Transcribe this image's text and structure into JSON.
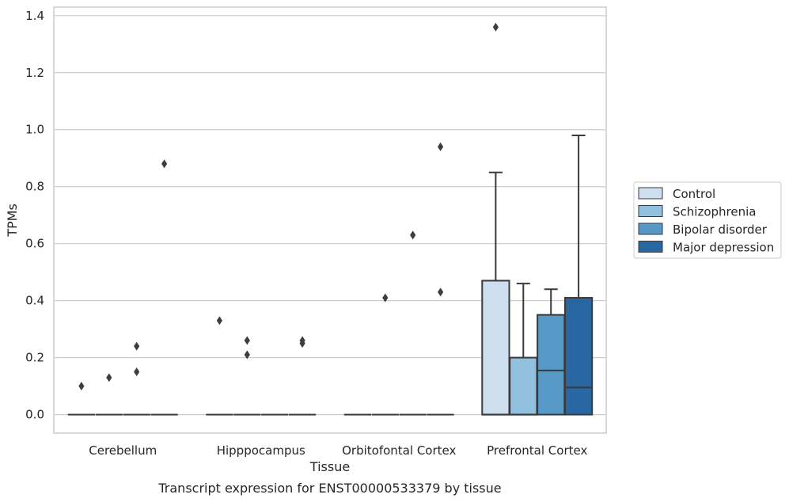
{
  "chart_data": {
    "type": "box",
    "title": "Transcript expression for ENST00000533379 by tissue",
    "xlabel": "Tissue",
    "ylabel": "TPMs",
    "ylim": [
      -0.065,
      1.43
    ],
    "yticks": [
      "0.0",
      "0.2",
      "0.4",
      "0.6",
      "0.8",
      "1.0",
      "1.2",
      "1.4"
    ],
    "grid": "horizontal",
    "legend_position": "right",
    "categories": [
      "Cerebellum",
      "Hipppocampus",
      "Orbitofontal Cortex",
      "Prefrontal Cortex"
    ],
    "series": [
      {
        "name": "Control",
        "color": "#cddfee",
        "boxes": [
          {
            "q1": 0,
            "median": 0,
            "q3": 0,
            "whisker_low": 0,
            "whisker_high": 0,
            "outliers": [
              0.1
            ]
          },
          {
            "q1": 0,
            "median": 0,
            "q3": 0,
            "whisker_low": 0,
            "whisker_high": 0,
            "outliers": [
              0.33
            ]
          },
          {
            "q1": 0,
            "median": 0,
            "q3": 0,
            "whisker_low": 0,
            "whisker_high": 0,
            "outliers": []
          },
          {
            "q1": 0,
            "median": 0,
            "q3": 0.47,
            "whisker_low": 0,
            "whisker_high": 0.85,
            "outliers": [
              1.36
            ]
          }
        ]
      },
      {
        "name": "Schizophrenia",
        "color": "#92c0df",
        "boxes": [
          {
            "q1": 0,
            "median": 0,
            "q3": 0,
            "whisker_low": 0,
            "whisker_high": 0,
            "outliers": [
              0.13
            ]
          },
          {
            "q1": 0,
            "median": 0,
            "q3": 0,
            "whisker_low": 0,
            "whisker_high": 0,
            "outliers": [
              0.26,
              0.21
            ]
          },
          {
            "q1": 0,
            "median": 0,
            "q3": 0,
            "whisker_low": 0,
            "whisker_high": 0,
            "outliers": [
              0.41
            ]
          },
          {
            "q1": 0,
            "median": 0,
            "q3": 0.2,
            "whisker_low": 0,
            "whisker_high": 0.46,
            "outliers": []
          }
        ]
      },
      {
        "name": "Bipolar disorder",
        "color": "#5698c6",
        "boxes": [
          {
            "q1": 0,
            "median": 0,
            "q3": 0,
            "whisker_low": 0,
            "whisker_high": 0,
            "outliers": [
              0.24,
              0.15
            ]
          },
          {
            "q1": 0,
            "median": 0,
            "q3": 0,
            "whisker_low": 0,
            "whisker_high": 0,
            "outliers": []
          },
          {
            "q1": 0,
            "median": 0,
            "q3": 0,
            "whisker_low": 0,
            "whisker_high": 0,
            "outliers": [
              0.63
            ]
          },
          {
            "q1": 0,
            "median": 0.155,
            "q3": 0.35,
            "whisker_low": 0,
            "whisker_high": 0.44,
            "outliers": []
          }
        ]
      },
      {
        "name": "Major depression",
        "color": "#2967a3",
        "boxes": [
          {
            "q1": 0,
            "median": 0,
            "q3": 0,
            "whisker_low": 0,
            "whisker_high": 0,
            "outliers": [
              0.88
            ]
          },
          {
            "q1": 0,
            "median": 0,
            "q3": 0,
            "whisker_low": 0,
            "whisker_high": 0,
            "outliers": [
              0.26,
              0.25
            ]
          },
          {
            "q1": 0,
            "median": 0,
            "q3": 0,
            "whisker_low": 0,
            "whisker_high": 0,
            "outliers": [
              0.94,
              0.43
            ]
          },
          {
            "q1": 0,
            "median": 0.095,
            "q3": 0.41,
            "whisker_low": 0,
            "whisker_high": 0.98,
            "outliers": []
          }
        ]
      }
    ]
  }
}
